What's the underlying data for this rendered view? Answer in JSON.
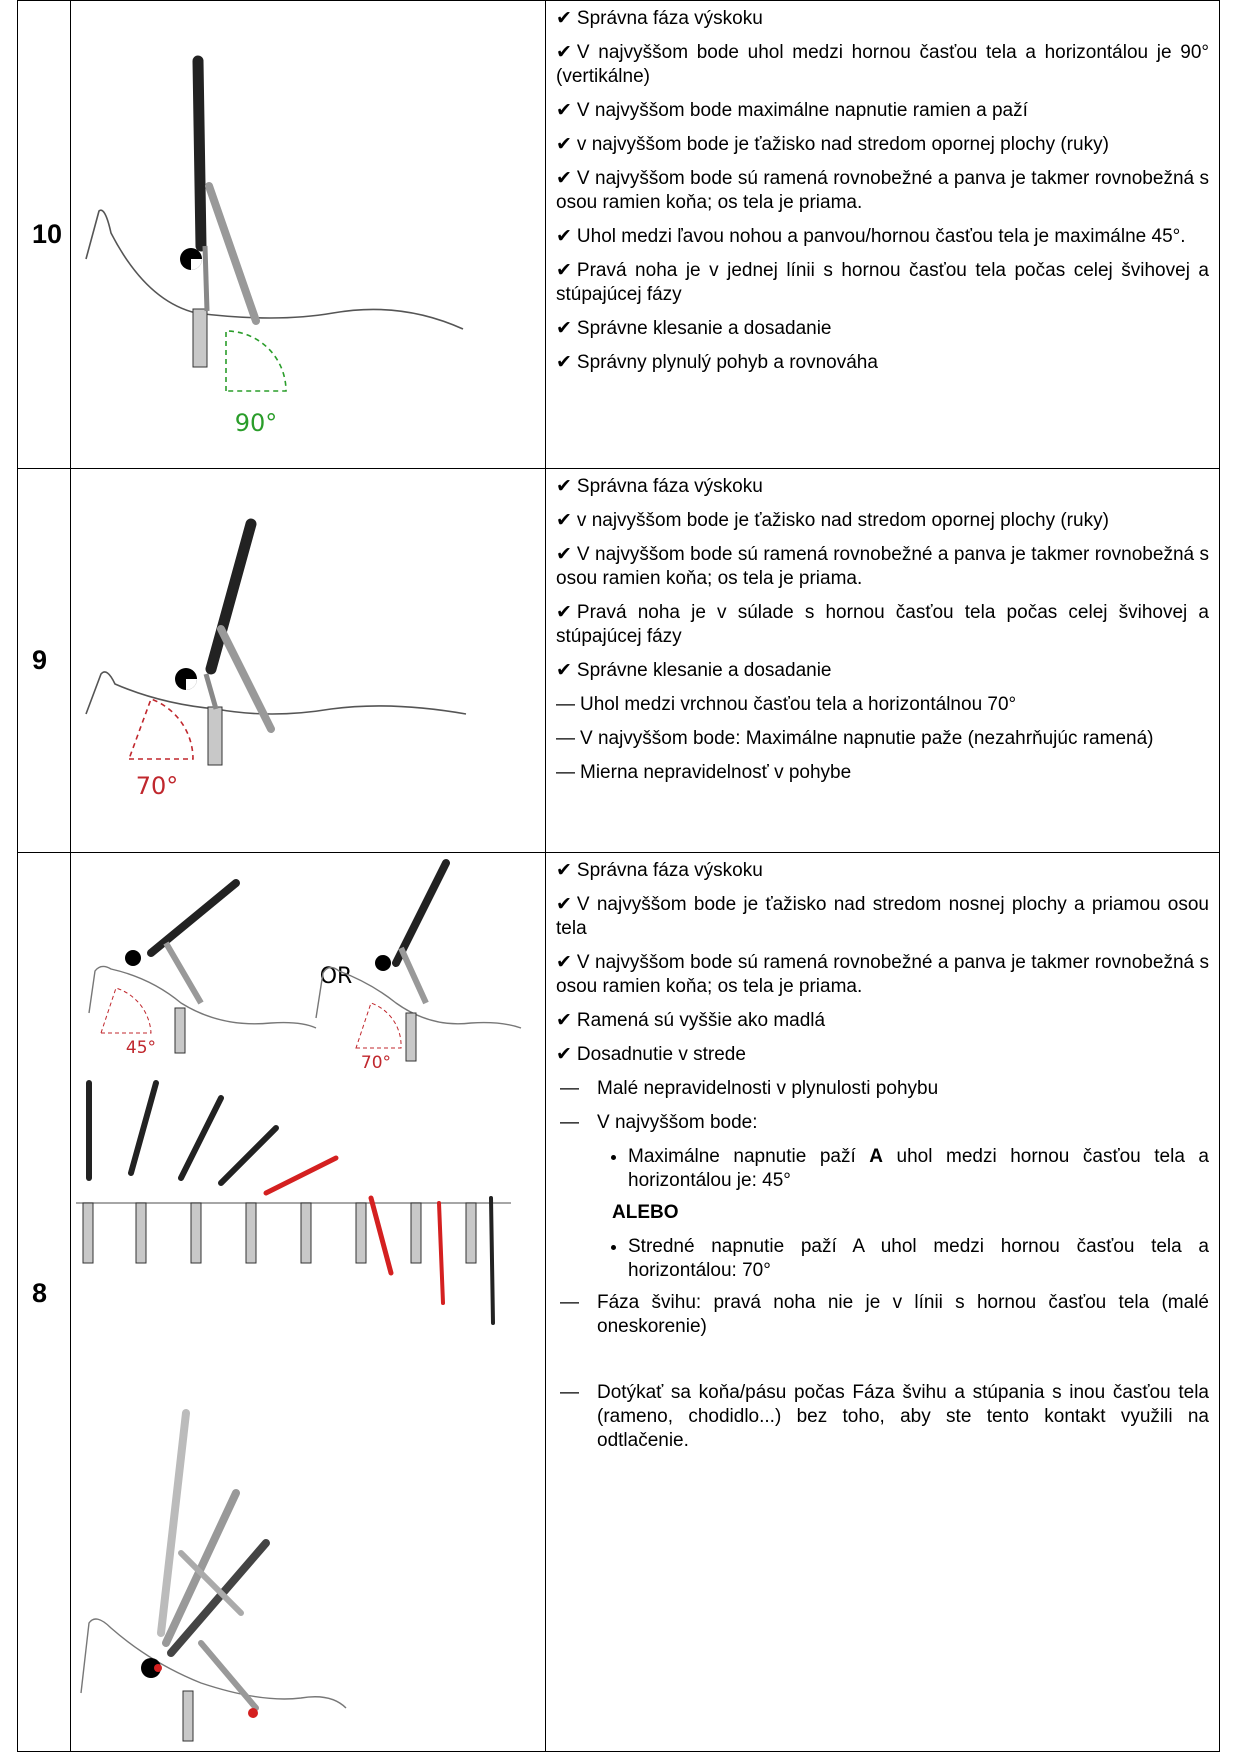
{
  "rows": [
    {
      "score": "10",
      "figure_labels": [
        "90°"
      ],
      "items": [
        {
          "mark": "✔",
          "text": "Správna fáza výskoku"
        },
        {
          "mark": "✔",
          "text": "V najvyššom bode uhol medzi hornou časťou tela a horizontálou je 90° (vertikálne)"
        },
        {
          "mark": "✔",
          "text": "V najvyššom bode maximálne napnutie ramien a paží"
        },
        {
          "mark": "✔",
          "text": "v najvyššom bode je ťažisko nad stredom opornej plochy (ruky)"
        },
        {
          "mark": "✔",
          "text": "V najvyššom bode sú ramená rovnobežné a panva je takmer rovnobežná s osou ramien koňa; os tela je priama."
        },
        {
          "mark": "✔",
          "text": "Uhol medzi ľavou nohou a panvou/hornou časťou tela je maximálne 45°."
        },
        {
          "mark": "✔",
          "text": "Pravá noha je v jednej línii s hornou časťou tela počas celej švihovej a stúpajúcej fázy"
        },
        {
          "mark": "✔",
          "text": "Správne klesanie a dosadanie"
        },
        {
          "mark": "✔",
          "text": "Správny plynulý pohyb a rovnováha"
        }
      ]
    },
    {
      "score": "9",
      "figure_labels": [
        "70°"
      ],
      "items": [
        {
          "mark": "✔",
          "text": "Správna fáza výskoku"
        },
        {
          "mark": "✔",
          "text": "v najvyššom bode je ťažisko nad stredom opornej plochy (ruky)"
        },
        {
          "mark": "✔",
          "text": "V najvyššom bode sú ramená rovnobežné a panva je takmer rovnobežná s osou ramien koňa; os tela je priama."
        },
        {
          "mark": "✔",
          "text": "Pravá noha je v súlade s hornou časťou tela počas celej švihovej a stúpajúcej fázy"
        },
        {
          "mark": "✔",
          "text": "Správne klesanie a dosadanie"
        },
        {
          "mark": "—",
          "text": "Uhol medzi vrchnou časťou tela a horizontálnou 70°"
        },
        {
          "mark": "—",
          "text": "V najvyššom bode: Maximálne napnutie paže (nezahrňujúc ramená)"
        },
        {
          "mark": "—",
          "text": "Mierna nepravidelnosť v pohybe"
        }
      ]
    },
    {
      "score": "8",
      "figure_labels": [
        "OR",
        "45°",
        "70°"
      ],
      "items": [
        {
          "mark": "✔",
          "text": "Správna fáza výskoku"
        },
        {
          "mark": "✔",
          "text": "V najvyššom bode je ťažisko nad stredom nosnej plochy a priamou osou tela"
        },
        {
          "mark": "✔",
          "text": "V najvyššom bode sú ramená rovnobežné a panva je takmer rovnobežná s osou ramien koňa; os tela je priama."
        },
        {
          "mark": "✔",
          "text": "Ramená sú vyššie ako madlá"
        },
        {
          "mark": "✔",
          "text": "Dosadnutie v strede"
        },
        {
          "mark": "—",
          "text": "Malé nepravidelnosti v plynulosti pohybu"
        },
        {
          "mark": "—",
          "text": "V najvyššom bode:",
          "sub": [
            {
              "text": "Maximálne napnutie paží ",
              "bold": "A",
              "rest": " uhol medzi hornou časťou tela a horizontálou je: 45°"
            },
            {
              "separator": "ALEBO"
            },
            {
              "text": "Stredné napnutie paží A uhol medzi hornou časťou tela a horizontálou: 70°"
            }
          ]
        },
        {
          "mark": "—",
          "text": "Fáza švihu: pravá noha nie je v línii s hornou časťou tela (malé oneskorenie)"
        },
        {
          "mark": "—",
          "text": "Dotýkať sa koňa/pásu počas Fáza švihu a stúpania s inou časťou tela (rameno, chodidlo...) bez toho, aby ste tento kontakt využili na odtlačenie."
        }
      ]
    }
  ]
}
